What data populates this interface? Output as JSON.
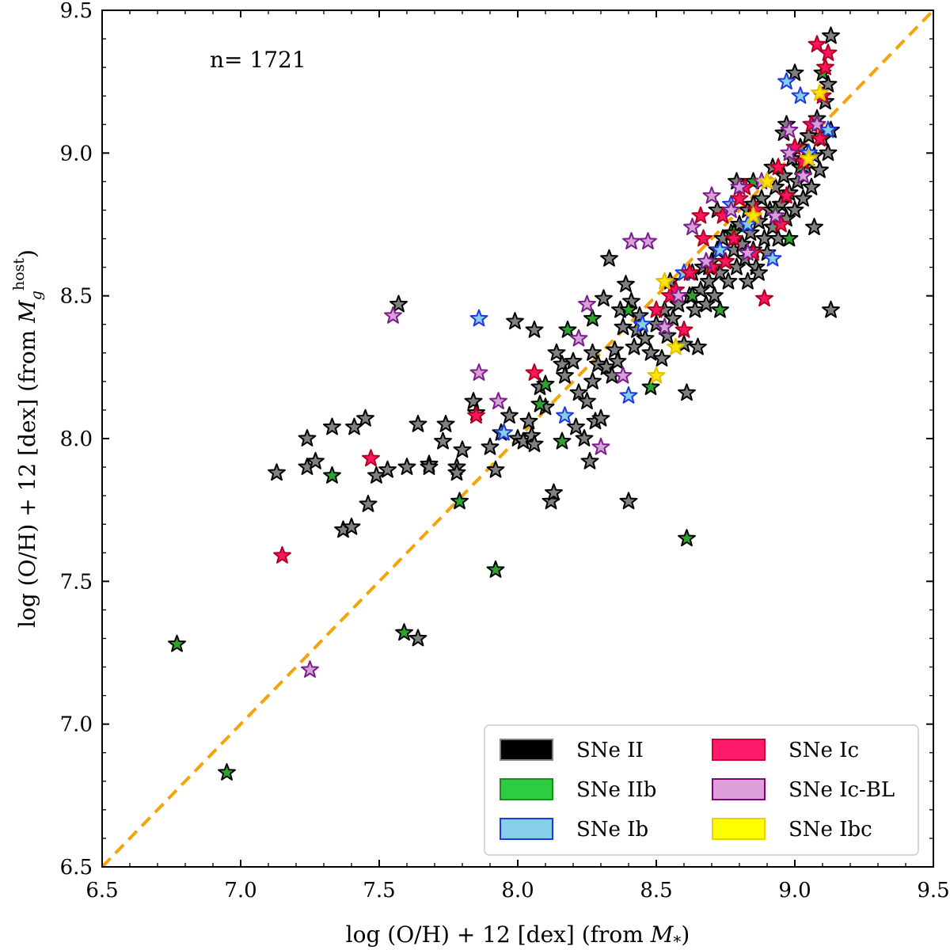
{
  "chart_data": {
    "type": "scatter",
    "xlabel_parts": [
      "log (O/H) + 12 [dex] (from ",
      "M",
      "*",
      ")"
    ],
    "ylabel_parts": [
      "log (O/H) + 12 [dex] (from ",
      "M",
      "g",
      "host",
      ")"
    ],
    "annotation": "n= 1721",
    "xlim": [
      6.5,
      9.5
    ],
    "ylim": [
      6.5,
      9.5
    ],
    "xticks": [
      6.5,
      7.0,
      7.5,
      8.0,
      8.5,
      9.0,
      9.5
    ],
    "yticks": [
      6.5,
      7.0,
      7.5,
      8.0,
      8.5,
      9.0,
      9.5
    ],
    "xtick_labels": [
      "6.5",
      "7.0",
      "7.5",
      "8.0",
      "8.5",
      "9.0",
      "9.5"
    ],
    "ytick_labels": [
      "6.5",
      "7.0",
      "7.5",
      "8.0",
      "8.5",
      "9.0",
      "9.5"
    ],
    "reference_line": {
      "x": [
        6.5,
        9.5
      ],
      "y": [
        6.5,
        9.5
      ],
      "style": "dashed",
      "color": "#f5a30a"
    },
    "legend_position": "lower-right",
    "series": [
      {
        "name": "SNe II",
        "fill": "#808080",
        "edge": "#000000",
        "legend_fill": "#000000",
        "legend_edge": "#808080",
        "points": [
          [
            7.13,
            7.88
          ],
          [
            7.24,
            8.0
          ],
          [
            7.24,
            7.9
          ],
          [
            7.27,
            7.92
          ],
          [
            7.33,
            8.04
          ],
          [
            7.37,
            7.68
          ],
          [
            7.4,
            7.69
          ],
          [
            7.41,
            8.04
          ],
          [
            7.45,
            8.07
          ],
          [
            7.46,
            7.77
          ],
          [
            7.49,
            7.87
          ],
          [
            7.53,
            7.89
          ],
          [
            7.57,
            8.47
          ],
          [
            7.6,
            7.9
          ],
          [
            7.64,
            7.3
          ],
          [
            7.64,
            8.05
          ],
          [
            7.68,
            7.91
          ],
          [
            7.68,
            7.9
          ],
          [
            7.73,
            7.99
          ],
          [
            7.74,
            8.05
          ],
          [
            7.78,
            7.9
          ],
          [
            7.78,
            7.88
          ],
          [
            7.8,
            7.96
          ],
          [
            7.84,
            8.13
          ],
          [
            7.85,
            8.09
          ],
          [
            7.9,
            7.97
          ],
          [
            7.92,
            7.89
          ],
          [
            7.94,
            8.02
          ],
          [
            7.97,
            8.08
          ],
          [
            7.99,
            8.41
          ],
          [
            8.0,
            8.0
          ],
          [
            8.02,
            7.99
          ],
          [
            8.04,
            8.06
          ],
          [
            8.05,
            8.01
          ],
          [
            8.06,
            7.98
          ],
          [
            8.06,
            8.38
          ],
          [
            8.08,
            8.18
          ],
          [
            8.1,
            8.11
          ],
          [
            8.12,
            7.78
          ],
          [
            8.13,
            7.81
          ],
          [
            8.14,
            8.3
          ],
          [
            8.16,
            8.26
          ],
          [
            8.17,
            8.22
          ],
          [
            8.2,
            8.27
          ],
          [
            8.21,
            8.04
          ],
          [
            8.22,
            8.16
          ],
          [
            8.24,
            8.0
          ],
          [
            8.25,
            8.13
          ],
          [
            8.26,
            7.92
          ],
          [
            8.27,
            8.2
          ],
          [
            8.27,
            8.3
          ],
          [
            8.28,
            8.06
          ],
          [
            8.29,
            8.26
          ],
          [
            8.3,
            8.07
          ],
          [
            8.31,
            8.49
          ],
          [
            8.32,
            8.25
          ],
          [
            8.33,
            8.63
          ],
          [
            8.34,
            8.22
          ],
          [
            8.35,
            8.31
          ],
          [
            8.36,
            8.27
          ],
          [
            8.37,
            8.45
          ],
          [
            8.38,
            8.39
          ],
          [
            8.39,
            8.54
          ],
          [
            8.4,
            7.78
          ],
          [
            8.41,
            8.48
          ],
          [
            8.42,
            8.32
          ],
          [
            8.43,
            8.38
          ],
          [
            8.44,
            8.43
          ],
          [
            8.46,
            8.35
          ],
          [
            8.48,
            8.3
          ],
          [
            8.5,
            8.4
          ],
          [
            8.52,
            8.28
          ],
          [
            8.53,
            8.45
          ],
          [
            8.54,
            8.36
          ],
          [
            8.55,
            8.55
          ],
          [
            8.56,
            8.42
          ],
          [
            8.58,
            8.47
          ],
          [
            8.6,
            8.33
          ],
          [
            8.61,
            8.16
          ],
          [
            8.62,
            8.5
          ],
          [
            8.63,
            8.58
          ],
          [
            8.64,
            8.45
          ],
          [
            8.65,
            8.32
          ],
          [
            8.66,
            8.52
          ],
          [
            8.67,
            8.6
          ],
          [
            8.68,
            8.47
          ],
          [
            8.69,
            8.55
          ],
          [
            8.7,
            8.62
          ],
          [
            8.71,
            8.5
          ],
          [
            8.72,
            8.66
          ],
          [
            8.73,
            8.58
          ],
          [
            8.74,
            8.7
          ],
          [
            8.75,
            8.62
          ],
          [
            8.76,
            8.55
          ],
          [
            8.77,
            8.72
          ],
          [
            8.78,
            8.66
          ],
          [
            8.79,
            8.6
          ],
          [
            8.8,
            8.75
          ],
          [
            8.81,
            8.68
          ],
          [
            8.82,
            8.63
          ],
          [
            8.83,
            8.8
          ],
          [
            8.84,
            8.72
          ],
          [
            8.85,
            8.66
          ],
          [
            8.86,
            8.6
          ],
          [
            8.87,
            8.76
          ],
          [
            8.88,
            8.84
          ],
          [
            8.89,
            8.7
          ],
          [
            8.9,
            8.65
          ],
          [
            8.91,
            8.8
          ],
          [
            8.92,
            8.74
          ],
          [
            8.93,
            8.88
          ],
          [
            8.94,
            8.7
          ],
          [
            8.95,
            8.82
          ],
          [
            8.96,
            8.92
          ],
          [
            8.97,
            8.77
          ],
          [
            8.98,
            8.86
          ],
          [
            8.99,
            8.98
          ],
          [
            9.0,
            8.8
          ],
          [
            9.01,
            8.9
          ],
          [
            9.02,
            9.02
          ],
          [
            9.03,
            8.84
          ],
          [
            9.04,
            8.95
          ],
          [
            9.05,
            9.06
          ],
          [
            9.06,
            8.88
          ],
          [
            9.07,
            8.99
          ],
          [
            9.08,
            9.12
          ],
          [
            9.09,
            8.94
          ],
          [
            9.1,
            9.05
          ],
          [
            9.11,
            9.18
          ],
          [
            9.12,
            9.0
          ],
          [
            9.12,
            9.24
          ],
          [
            9.13,
            9.08
          ],
          [
            9.13,
            9.41
          ],
          [
            9.13,
            8.45
          ],
          [
            8.79,
            8.9
          ],
          [
            8.85,
            8.82
          ],
          [
            8.92,
            8.95
          ],
          [
            8.96,
            9.07
          ],
          [
            9.0,
            9.28
          ],
          [
            8.97,
            9.1
          ],
          [
            8.83,
            8.55
          ],
          [
            8.72,
            8.8
          ],
          [
            8.87,
            8.58
          ],
          [
            9.07,
            8.74
          ]
        ]
      },
      {
        "name": "SNe IIb",
        "fill": "#2ca42c",
        "edge": "#000000",
        "legend_fill": "#2ecc40",
        "legend_edge": "#228b22",
        "points": [
          [
            6.77,
            7.28
          ],
          [
            6.95,
            6.83
          ],
          [
            7.33,
            7.87
          ],
          [
            7.59,
            7.32
          ],
          [
            7.79,
            7.78
          ],
          [
            7.92,
            7.54
          ],
          [
            8.08,
            8.12
          ],
          [
            8.1,
            8.19
          ],
          [
            8.16,
            7.99
          ],
          [
            8.18,
            8.38
          ],
          [
            8.27,
            8.42
          ],
          [
            8.4,
            8.45
          ],
          [
            8.48,
            8.18
          ],
          [
            8.61,
            7.65
          ],
          [
            8.63,
            8.5
          ],
          [
            8.73,
            8.45
          ],
          [
            8.78,
            8.72
          ],
          [
            8.93,
            8.8
          ],
          [
            8.98,
            8.7
          ],
          [
            9.02,
            8.95
          ],
          [
            9.1,
            9.28
          ],
          [
            8.85,
            8.9
          ],
          [
            8.69,
            8.6
          ]
        ]
      },
      {
        "name": "SNe Ib",
        "fill": "#87ceeb",
        "edge": "#1e3adc",
        "legend_fill": "#87ceeb",
        "legend_edge": "#1e3adc",
        "points": [
          [
            7.86,
            8.42
          ],
          [
            7.95,
            8.02
          ],
          [
            8.17,
            8.08
          ],
          [
            8.4,
            8.15
          ],
          [
            8.45,
            8.4
          ],
          [
            8.73,
            8.66
          ],
          [
            8.83,
            8.75
          ],
          [
            8.92,
            8.63
          ],
          [
            8.97,
            9.25
          ],
          [
            9.05,
            9.0
          ],
          [
            9.12,
            9.08
          ],
          [
            8.6,
            8.58
          ],
          [
            9.02,
            9.2
          ],
          [
            8.77,
            8.82
          ]
        ]
      },
      {
        "name": "SNe Ic",
        "fill": "#ff1460",
        "edge": "#b00020",
        "legend_fill": "#ff1a6e",
        "legend_edge": "#cc0033",
        "points": [
          [
            7.15,
            7.59
          ],
          [
            7.47,
            7.93
          ],
          [
            7.85,
            8.08
          ],
          [
            8.06,
            8.23
          ],
          [
            8.5,
            8.45
          ],
          [
            8.57,
            8.52
          ],
          [
            8.62,
            8.58
          ],
          [
            8.67,
            8.7
          ],
          [
            8.7,
            8.6
          ],
          [
            8.74,
            8.78
          ],
          [
            8.78,
            8.7
          ],
          [
            8.82,
            8.88
          ],
          [
            8.86,
            8.8
          ],
          [
            8.89,
            8.49
          ],
          [
            8.9,
            8.9
          ],
          [
            8.94,
            8.95
          ],
          [
            8.97,
            8.85
          ],
          [
            9.0,
            9.02
          ],
          [
            9.03,
            8.97
          ],
          [
            9.06,
            9.1
          ],
          [
            9.09,
            9.05
          ],
          [
            9.11,
            9.3
          ],
          [
            9.12,
            9.35
          ],
          [
            9.1,
            9.2
          ],
          [
            8.85,
            8.65
          ],
          [
            8.95,
            8.75
          ],
          [
            8.75,
            8.62
          ],
          [
            8.6,
            8.38
          ],
          [
            8.55,
            8.5
          ],
          [
            8.66,
            8.78
          ],
          [
            8.8,
            8.84
          ],
          [
            9.08,
            9.38
          ]
        ]
      },
      {
        "name": "SNe Ic-BL",
        "fill": "#d8a0d8",
        "edge": "#7a1f8a",
        "legend_fill": "#dda0dd",
        "legend_edge": "#800080",
        "points": [
          [
            7.25,
            7.19
          ],
          [
            7.55,
            8.43
          ],
          [
            7.86,
            8.23
          ],
          [
            7.93,
            8.13
          ],
          [
            8.22,
            8.35
          ],
          [
            8.25,
            8.47
          ],
          [
            8.3,
            7.97
          ],
          [
            8.38,
            8.22
          ],
          [
            8.41,
            8.69
          ],
          [
            8.47,
            8.69
          ],
          [
            8.53,
            8.39
          ],
          [
            8.58,
            8.5
          ],
          [
            8.68,
            8.62
          ],
          [
            8.77,
            8.8
          ],
          [
            8.83,
            8.65
          ],
          [
            8.88,
            8.9
          ],
          [
            8.93,
            8.78
          ],
          [
            8.98,
            9.0
          ],
          [
            9.03,
            8.92
          ],
          [
            9.08,
            9.1
          ],
          [
            8.7,
            8.85
          ],
          [
            8.8,
            8.88
          ],
          [
            8.98,
            9.08
          ],
          [
            8.63,
            8.74
          ]
        ]
      },
      {
        "name": "SNe Ibc",
        "fill": "#ffe600",
        "edge": "#e0c000",
        "legend_fill": "#ffff00",
        "legend_edge": "#e6d200",
        "points": [
          [
            8.5,
            8.22
          ],
          [
            8.53,
            8.55
          ],
          [
            8.57,
            8.32
          ],
          [
            8.85,
            8.78
          ],
          [
            9.05,
            8.98
          ],
          [
            9.09,
            9.21
          ],
          [
            8.9,
            8.9
          ]
        ]
      }
    ]
  }
}
